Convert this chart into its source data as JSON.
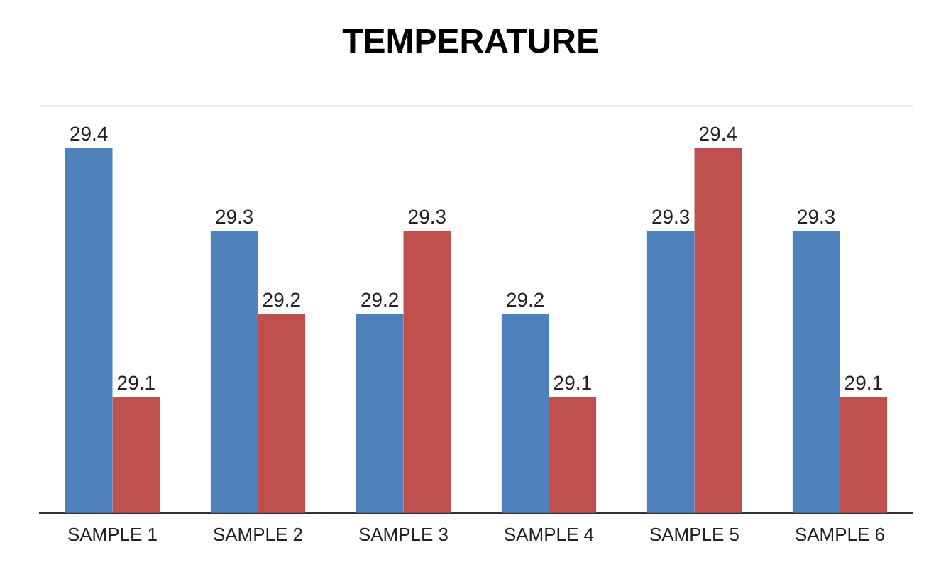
{
  "chart_data": {
    "type": "bar",
    "title": "TEMPERATURE",
    "categories": [
      "SAMPLE 1",
      "SAMPLE 2",
      "SAMPLE 3",
      "SAMPLE 4",
      "SAMPLE 5",
      "SAMPLE 6"
    ],
    "series": [
      {
        "color": "#4f81bd",
        "values": [
          29.4,
          29.3,
          29.2,
          29.2,
          29.3,
          29.3
        ]
      },
      {
        "color": "#c0504d",
        "values": [
          29.1,
          29.2,
          29.3,
          29.1,
          29.4,
          29.1
        ]
      }
    ],
    "ylim": [
      28.96,
      29.45
    ],
    "data_labels": true,
    "grid": false,
    "legend": false
  }
}
